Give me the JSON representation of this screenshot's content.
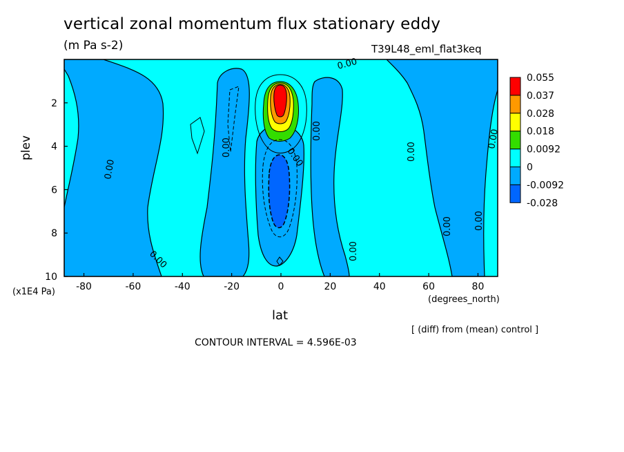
{
  "chart": {
    "title": "vertical zonal momentum flux stationary eddy",
    "units": "(m Pa s-2)",
    "experiment": "T39L48_eml_flat3keq",
    "y_axis_label": "plev",
    "y_units": "(x1E4 Pa)",
    "x_axis_label": "lat",
    "x_units": "(degrees_north)",
    "comparison_note": "[ (diff) from (mean) control ]",
    "contour_interval": "CONTOUR INTERVAL = 4.596E-03"
  },
  "chart_data": {
    "type": "heatmap",
    "x": {
      "label": "lat",
      "units": "degrees_north",
      "range": [
        -88,
        88
      ],
      "ticks": [
        -80,
        -60,
        -40,
        -20,
        0,
        20,
        40,
        60,
        80
      ]
    },
    "y": {
      "label": "plev",
      "units": "x1E4 Pa",
      "range": [
        0,
        10
      ],
      "inverted": true,
      "ticks": [
        2,
        4,
        6,
        8,
        10
      ]
    },
    "colorbar": {
      "levels": [
        "0.055",
        "0.037",
        "0.028",
        "0.018",
        "0.0092",
        "0",
        "-0.0092",
        "-0.028"
      ],
      "colors": [
        "#ff0000",
        "#ff9900",
        "#ffff00",
        "#33dd00",
        "#00ffff",
        "#00aaff",
        "#0066ff"
      ]
    },
    "contour_labels": [
      "0.00",
      "0.00",
      "0.00",
      "0.00",
      "0.00",
      "0.00",
      "0.00",
      "0.00",
      "0.00",
      "0.00",
      "0.00",
      "0.00",
      "0.00"
    ],
    "features": [
      {
        "name": "positive maximum",
        "lat": 0,
        "plev": 2.0,
        "value": 0.055
      },
      {
        "name": "negative minimum",
        "lat": 0,
        "plev": 6.5,
        "value": -0.028
      }
    ]
  }
}
